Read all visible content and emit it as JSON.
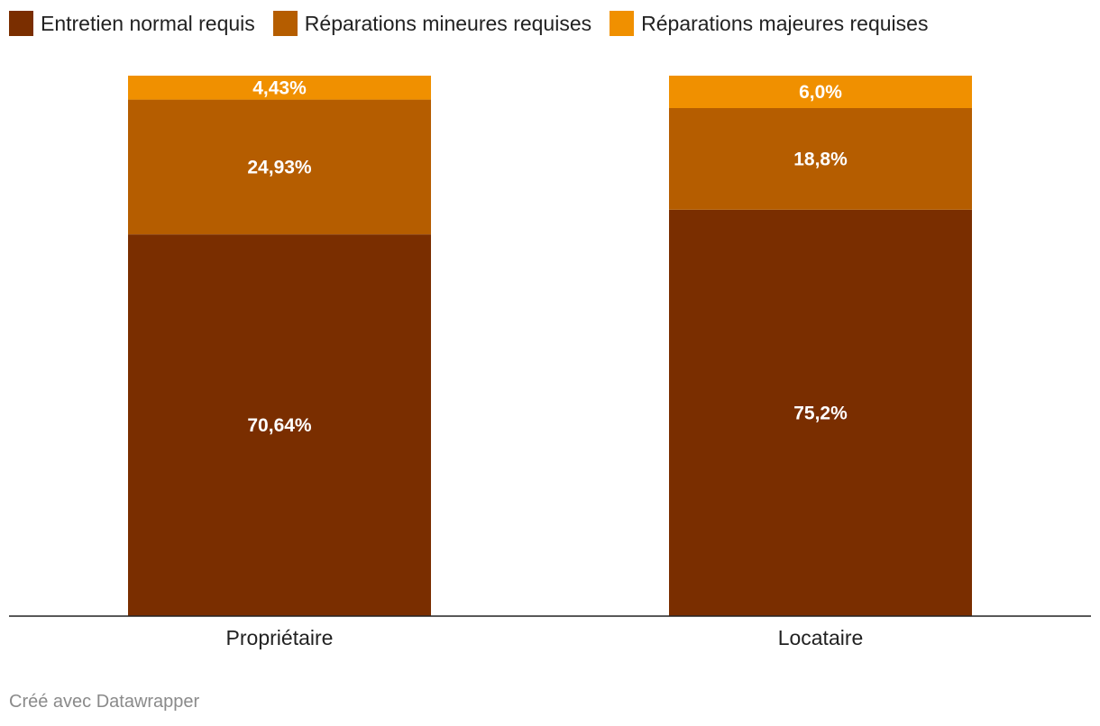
{
  "chart_data": {
    "type": "bar",
    "stacked": true,
    "categories": [
      "Propriétaire",
      "Locataire"
    ],
    "series": [
      {
        "name": "Entretien normal requis",
        "color": "#7a2e00",
        "values": [
          70.64,
          75.2
        ],
        "labels": [
          "70,64%",
          "75,2%"
        ]
      },
      {
        "name": "Réparations mineures requises",
        "color": "#b55d00",
        "values": [
          24.93,
          18.8
        ],
        "labels": [
          "24,93%",
          "18,8%"
        ]
      },
      {
        "name": "Réparations majeures requises",
        "color": "#f09000",
        "values": [
          4.43,
          6.0
        ],
        "labels": [
          "4,43%",
          "6,0%"
        ]
      }
    ],
    "ylim": [
      0,
      100
    ],
    "legend_position": "top-left",
    "grid": false
  },
  "credit": "Créé avec Datawrapper"
}
